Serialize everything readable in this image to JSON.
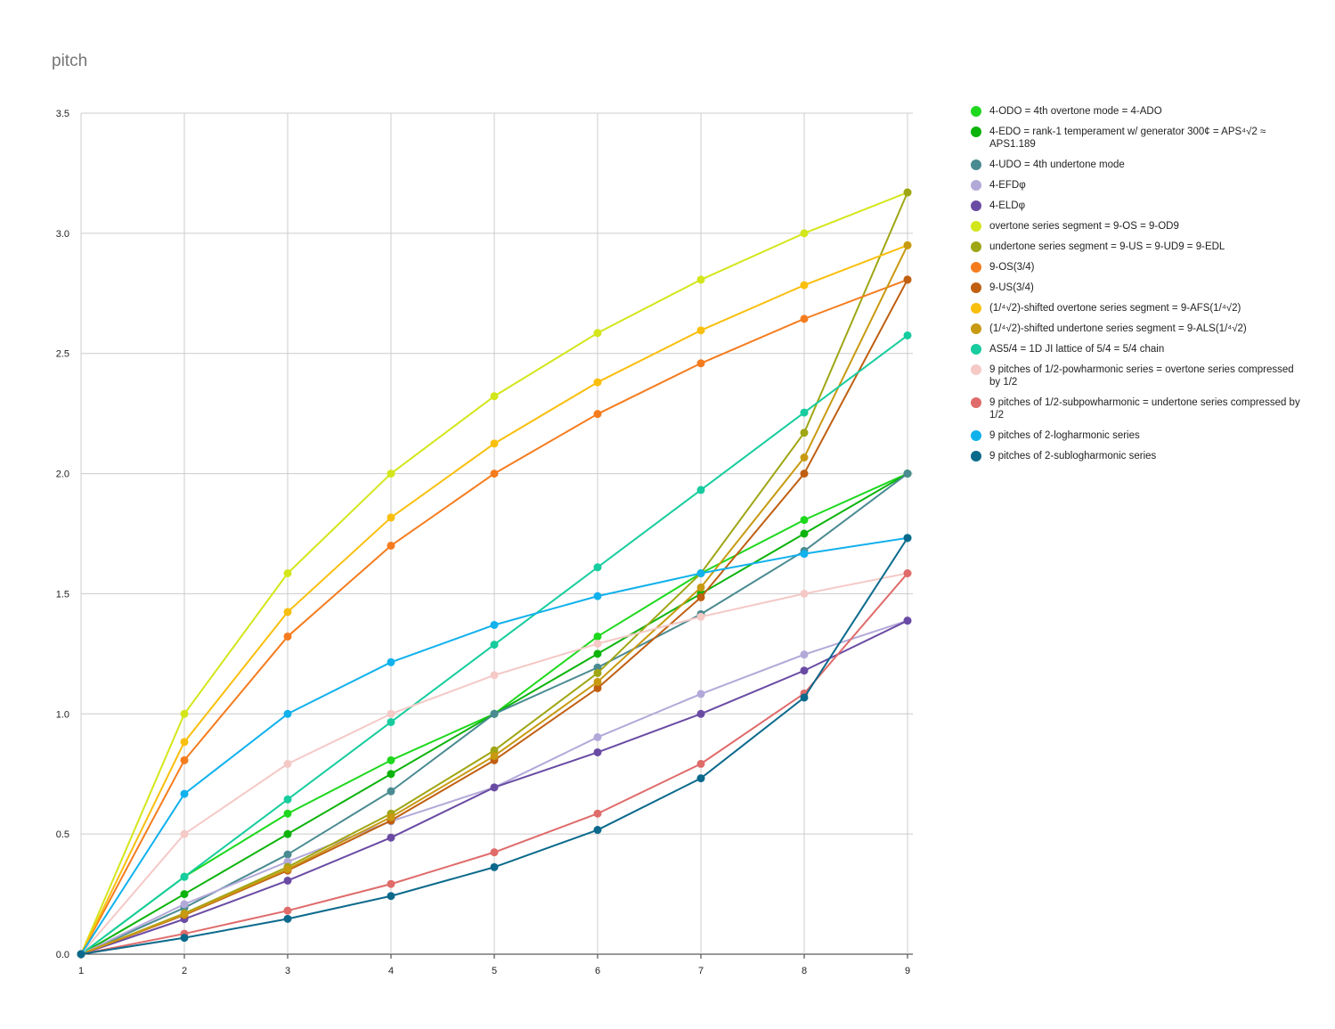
{
  "chart_data": {
    "type": "line",
    "title": "pitch",
    "x": [
      1,
      2,
      3,
      4,
      5,
      6,
      7,
      8,
      9
    ],
    "ylim": [
      0,
      3.5
    ],
    "yticks": [
      "0.0",
      "0.5",
      "1.0",
      "1.5",
      "2.0",
      "2.5",
      "3.0",
      "3.5"
    ],
    "xticks": [
      "1",
      "2",
      "3",
      "4",
      "5",
      "6",
      "7",
      "8",
      "9"
    ],
    "grid": true,
    "legend_position": "right",
    "series": [
      {
        "name": "4-ODO = 4th overtone mode = 4-ADO",
        "color": "#1ed81e",
        "values": [
          0,
          0.322,
          0.585,
          0.807,
          1.0,
          1.322,
          1.585,
          1.807,
          2.0
        ]
      },
      {
        "name": "4-EDO = rank-1 temperament w/ generator 300¢ = APS⁴√2 ≈ APS1.189",
        "color": "#0cb30c",
        "values": [
          0,
          0.25,
          0.5,
          0.75,
          1.0,
          1.25,
          1.5,
          1.75,
          2.0
        ]
      },
      {
        "name": "4-UDO = 4th undertone mode",
        "color": "#4a8b91",
        "values": [
          0,
          0.193,
          0.415,
          0.678,
          1.0,
          1.193,
          1.415,
          1.678,
          2.0
        ]
      },
      {
        "name": "4-EFDφ",
        "color": "#b3a9d9",
        "values": [
          0,
          0.208,
          0.385,
          0.553,
          0.694,
          0.903,
          1.083,
          1.247,
          1.388
        ]
      },
      {
        "name": "4-ELDφ",
        "color": "#6a4ba4",
        "values": [
          0,
          0.146,
          0.306,
          0.485,
          0.694,
          0.84,
          1.0,
          1.18,
          1.388
        ]
      },
      {
        "name": "overtone series segment = 9-OS = 9-OD9",
        "color": "#d3e61b",
        "values": [
          0,
          1.0,
          1.585,
          2.0,
          2.322,
          2.585,
          2.807,
          3.0,
          3.17
        ]
      },
      {
        "name": "undertone series segment = 9-US = 9-UD9 = 9-EDL",
        "color": "#9fa614",
        "values": [
          0,
          0.17,
          0.363,
          0.585,
          0.848,
          1.17,
          1.585,
          2.17,
          3.17
        ]
      },
      {
        "name": "9-OS(3/4)",
        "color": "#f57c1e",
        "values": [
          0,
          0.807,
          1.322,
          1.7,
          2.0,
          2.248,
          2.459,
          2.644,
          2.807
        ]
      },
      {
        "name": "9-US(3/4)",
        "color": "#c05f11",
        "values": [
          0,
          0.163,
          0.348,
          0.556,
          0.807,
          1.107,
          1.485,
          2.0,
          2.807
        ]
      },
      {
        "name": "(1/⁴√2)-shifted overtone series segment = 9-AFS(1/⁴√2)",
        "color": "#f9bf0e",
        "values": [
          0,
          0.883,
          1.424,
          1.817,
          2.125,
          2.38,
          2.596,
          2.784,
          2.95
        ]
      },
      {
        "name": "(1/⁴√2)-shifted undertone series segment = 9-ALS(1/⁴√2)",
        "color": "#c89a12",
        "values": [
          0,
          0.166,
          0.354,
          0.57,
          0.825,
          1.133,
          1.526,
          2.067,
          2.95
        ]
      },
      {
        "name": "AS5/4 = 1D JI lattice of 5/4 = 5/4 chain",
        "color": "#17cc9e",
        "values": [
          0,
          0.322,
          0.644,
          0.966,
          1.288,
          1.61,
          1.932,
          2.254,
          2.575
        ]
      },
      {
        "name": "9 pitches of 1/2-powharmonic series = overtone series compressed by 1/2",
        "color": "#f4c9c6",
        "values": [
          0,
          0.5,
          0.792,
          1.0,
          1.161,
          1.292,
          1.404,
          1.5,
          1.585
        ]
      },
      {
        "name": "9 pitches of 1/2-subpowharmonic = undertone series compressed by 1/2",
        "color": "#e06b6b",
        "values": [
          0,
          0.085,
          0.181,
          0.292,
          0.424,
          0.585,
          0.792,
          1.085,
          1.585
        ]
      },
      {
        "name": "9 pitches of 2-logharmonic series",
        "color": "#11b1ec",
        "values": [
          0,
          0.667,
          1.0,
          1.215,
          1.37,
          1.49,
          1.585,
          1.666,
          1.732
        ]
      },
      {
        "name": "9 pitches of 2-sublogharmonic series",
        "color": "#0b6a8c",
        "values": [
          0,
          0.068,
          0.147,
          0.242,
          0.362,
          0.517,
          0.732,
          1.068,
          1.732
        ]
      }
    ]
  }
}
